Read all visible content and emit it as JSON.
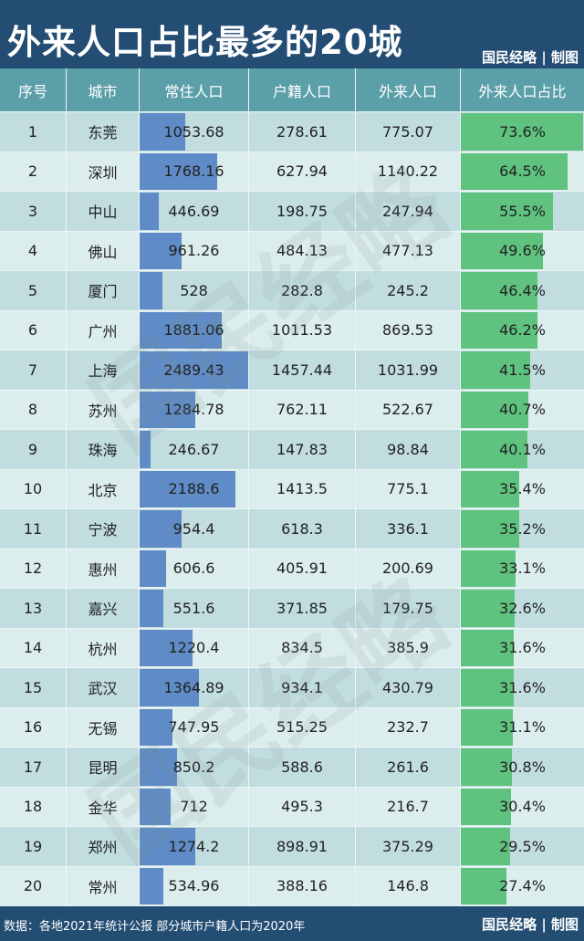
{
  "title": "外来人口占比最多的20城",
  "brand": "国民经略 | 制图",
  "watermark": "国民经略",
  "headers": [
    "序号",
    "城市",
    "常住人口",
    "户籍人口",
    "外来人口",
    "外来人口占比"
  ],
  "colors": {
    "title_bg": "#234d73",
    "header_bg": "#5b9fa8",
    "resident_bar": "#5f8bc6",
    "share_bar": "#5fc27f"
  },
  "rows": [
    {
      "rank": "1",
      "city": "东莞",
      "resident": "1053.68",
      "registered": "278.61",
      "migrant": "775.07",
      "share": "73.6%"
    },
    {
      "rank": "2",
      "city": "深圳",
      "resident": "1768.16",
      "registered": "627.94",
      "migrant": "1140.22",
      "share": "64.5%"
    },
    {
      "rank": "3",
      "city": "中山",
      "resident": "446.69",
      "registered": "198.75",
      "migrant": "247.94",
      "share": "55.5%"
    },
    {
      "rank": "4",
      "city": "佛山",
      "resident": "961.26",
      "registered": "484.13",
      "migrant": "477.13",
      "share": "49.6%"
    },
    {
      "rank": "5",
      "city": "厦门",
      "resident": "528",
      "registered": "282.8",
      "migrant": "245.2",
      "share": "46.4%"
    },
    {
      "rank": "6",
      "city": "广州",
      "resident": "1881.06",
      "registered": "1011.53",
      "migrant": "869.53",
      "share": "46.2%"
    },
    {
      "rank": "7",
      "city": "上海",
      "resident": "2489.43",
      "registered": "1457.44",
      "migrant": "1031.99",
      "share": "41.5%"
    },
    {
      "rank": "8",
      "city": "苏州",
      "resident": "1284.78",
      "registered": "762.11",
      "migrant": "522.67",
      "share": "40.7%"
    },
    {
      "rank": "9",
      "city": "珠海",
      "resident": "246.67",
      "registered": "147.83",
      "migrant": "98.84",
      "share": "40.1%"
    },
    {
      "rank": "10",
      "city": "北京",
      "resident": "2188.6",
      "registered": "1413.5",
      "migrant": "775.1",
      "share": "35.4%"
    },
    {
      "rank": "11",
      "city": "宁波",
      "resident": "954.4",
      "registered": "618.3",
      "migrant": "336.1",
      "share": "35.2%"
    },
    {
      "rank": "12",
      "city": "惠州",
      "resident": "606.6",
      "registered": "405.91",
      "migrant": "200.69",
      "share": "33.1%"
    },
    {
      "rank": "13",
      "city": "嘉兴",
      "resident": "551.6",
      "registered": "371.85",
      "migrant": "179.75",
      "share": "32.6%"
    },
    {
      "rank": "14",
      "city": "杭州",
      "resident": "1220.4",
      "registered": "834.5",
      "migrant": "385.9",
      "share": "31.6%"
    },
    {
      "rank": "15",
      "city": "武汉",
      "resident": "1364.89",
      "registered": "934.1",
      "migrant": "430.79",
      "share": "31.6%"
    },
    {
      "rank": "16",
      "city": "无锡",
      "resident": "747.95",
      "registered": "515.25",
      "migrant": "232.7",
      "share": "31.1%"
    },
    {
      "rank": "17",
      "city": "昆明",
      "resident": "850.2",
      "registered": "588.6",
      "migrant": "261.6",
      "share": "30.8%"
    },
    {
      "rank": "18",
      "city": "金华",
      "resident": "712",
      "registered": "495.3",
      "migrant": "216.7",
      "share": "30.4%"
    },
    {
      "rank": "19",
      "city": "郑州",
      "resident": "1274.2",
      "registered": "898.91",
      "migrant": "375.29",
      "share": "29.5%"
    },
    {
      "rank": "20",
      "city": "常州",
      "resident": "534.96",
      "registered": "388.16",
      "migrant": "146.8",
      "share": "27.4%"
    }
  ],
  "footer": {
    "source": "数据：各地2021年统计公报 部分城市户籍人口为2020年",
    "brand": "国民经略 | 制图"
  }
}
